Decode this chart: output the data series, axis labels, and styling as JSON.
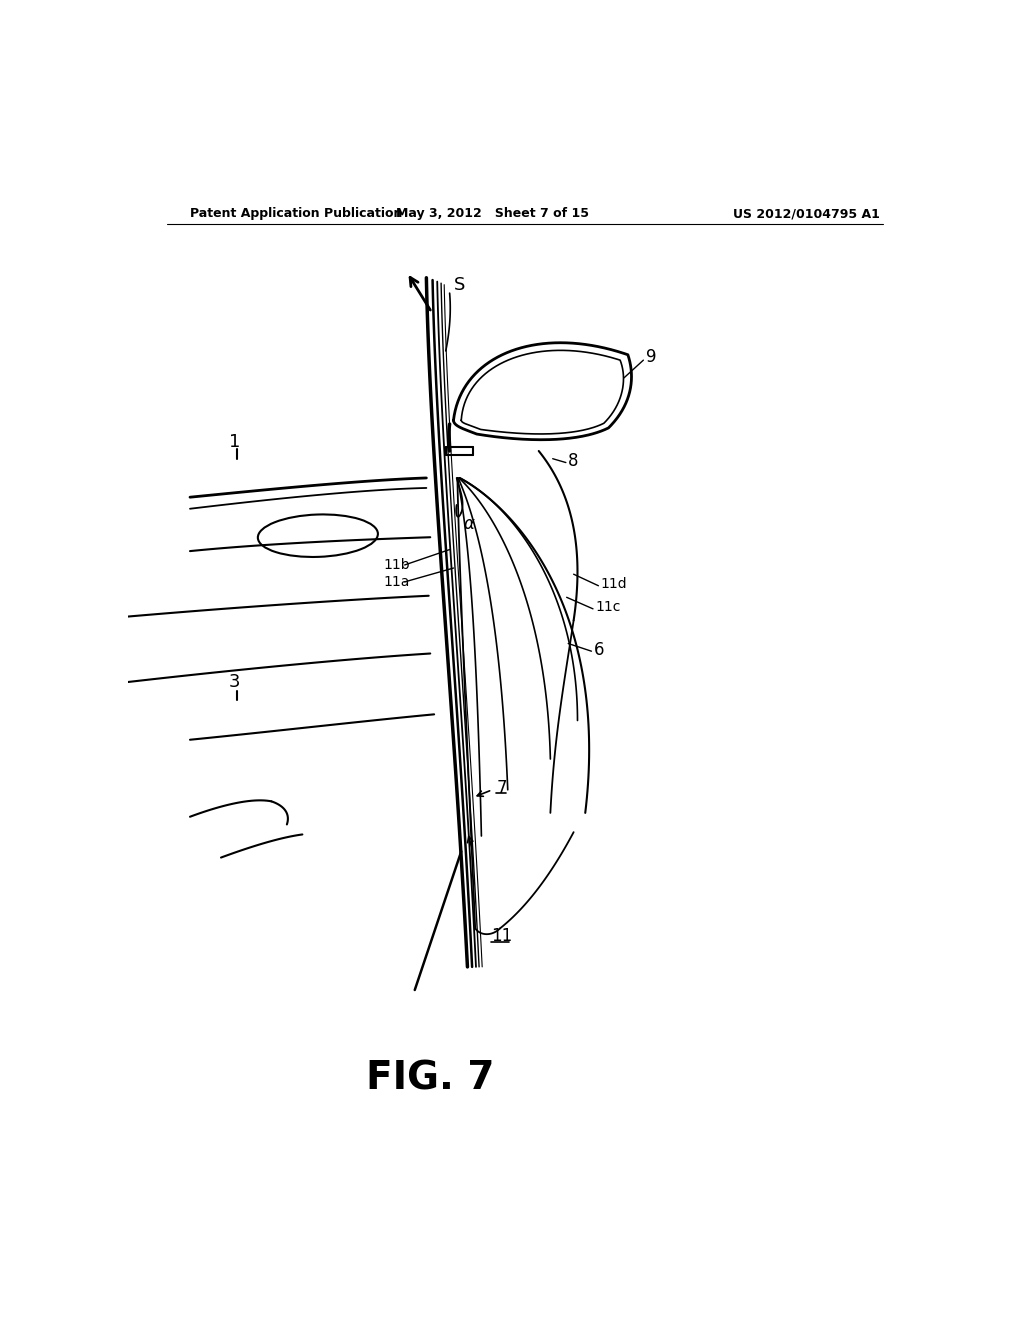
{
  "bg_color": "#ffffff",
  "line_color": "#000000",
  "header_left": "Patent Application Publication",
  "header_mid": "May 3, 2012   Sheet 7 of 15",
  "header_right": "US 2012/0104795 A1",
  "fig_label": "FIG. 7"
}
